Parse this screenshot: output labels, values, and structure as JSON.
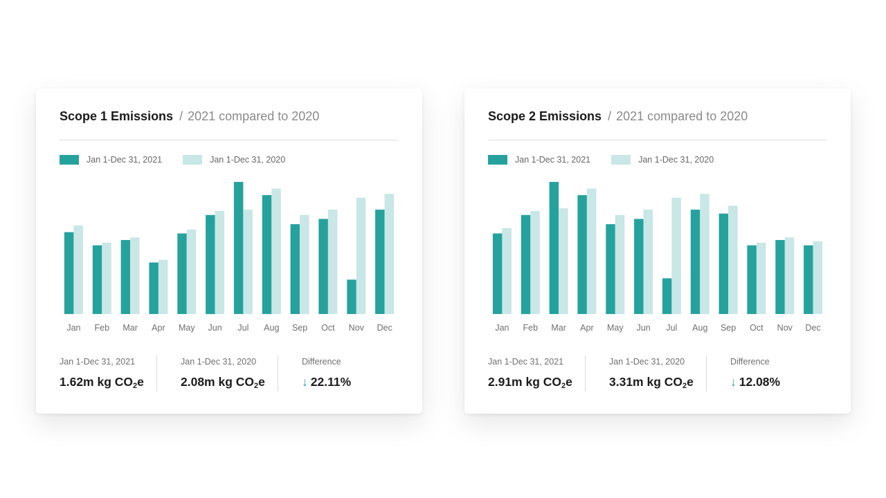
{
  "colors": {
    "current": "#26a29d",
    "previous": "#c8e7e6",
    "tick": "#6f6f6f"
  },
  "cards": [
    {
      "title": "Scope 1 Emissions",
      "separator": "/",
      "subtitle": "2021 compared to 2020",
      "legend": {
        "current": "Jan 1-Dec 31, 2021",
        "previous": "Jan 1-Dec 31, 2020"
      },
      "stats": {
        "current_label": "Jan 1-Dec 31, 2021",
        "current_value": "1.62m kg CO",
        "previous_label": "Jan 1-Dec 31, 2020",
        "previous_value": "2.08m kg CO",
        "co2_sub": "2",
        "co2_suffix": "e",
        "diff_label": "Difference",
        "diff_arrow": "↓",
        "diff_value": "22.11%"
      }
    },
    {
      "title": "Scope 2 Emissions",
      "separator": "/",
      "subtitle": "2021 compared to 2020",
      "legend": {
        "current": "Jan 1-Dec 31, 2021",
        "previous": "Jan 1-Dec 31, 2020"
      },
      "stats": {
        "current_label": "Jan 1-Dec 31, 2021",
        "current_value": "2.91m kg CO",
        "previous_label": "Jan 1-Dec 31, 2020",
        "previous_value": "3.31m kg CO",
        "co2_sub": "2",
        "co2_suffix": "e",
        "diff_label": "Difference",
        "diff_arrow": "↓",
        "diff_value": "12.08%"
      }
    }
  ],
  "chart_data": [
    {
      "type": "bar",
      "title": "Scope 1 Emissions",
      "categories": [
        "Jan",
        "Feb",
        "Mar",
        "Apr",
        "May",
        "Jun",
        "Jul",
        "Aug",
        "Sep",
        "Oct",
        "Nov",
        "Dec"
      ],
      "series": [
        {
          "name": "Jan 1-Dec 31, 2021",
          "values": [
            62,
            52,
            56,
            39,
            61,
            75,
            100,
            90,
            68,
            72,
            26,
            79
          ]
        },
        {
          "name": "Jan 1-Dec 31, 2020",
          "values": [
            67,
            54,
            58,
            41,
            64,
            78,
            79,
            95,
            75,
            79,
            88,
            91
          ]
        }
      ],
      "ylim": [
        0,
        100
      ]
    },
    {
      "type": "bar",
      "title": "Scope 2 Emissions",
      "categories": [
        "Jan",
        "Feb",
        "Mar",
        "Apr",
        "May",
        "Jun",
        "Jul",
        "Aug",
        "Sep",
        "Oct",
        "Nov",
        "Dec"
      ],
      "series": [
        {
          "name": "Jan 1-Dec 31, 2021",
          "values": [
            61,
            75,
            100,
            90,
            68,
            72,
            27,
            79,
            76,
            52,
            56,
            52
          ]
        },
        {
          "name": "Jan 1-Dec 31, 2020",
          "values": [
            65,
            78,
            80,
            95,
            75,
            79,
            88,
            91,
            82,
            54,
            58,
            55
          ]
        }
      ],
      "ylim": [
        0,
        100
      ]
    }
  ]
}
